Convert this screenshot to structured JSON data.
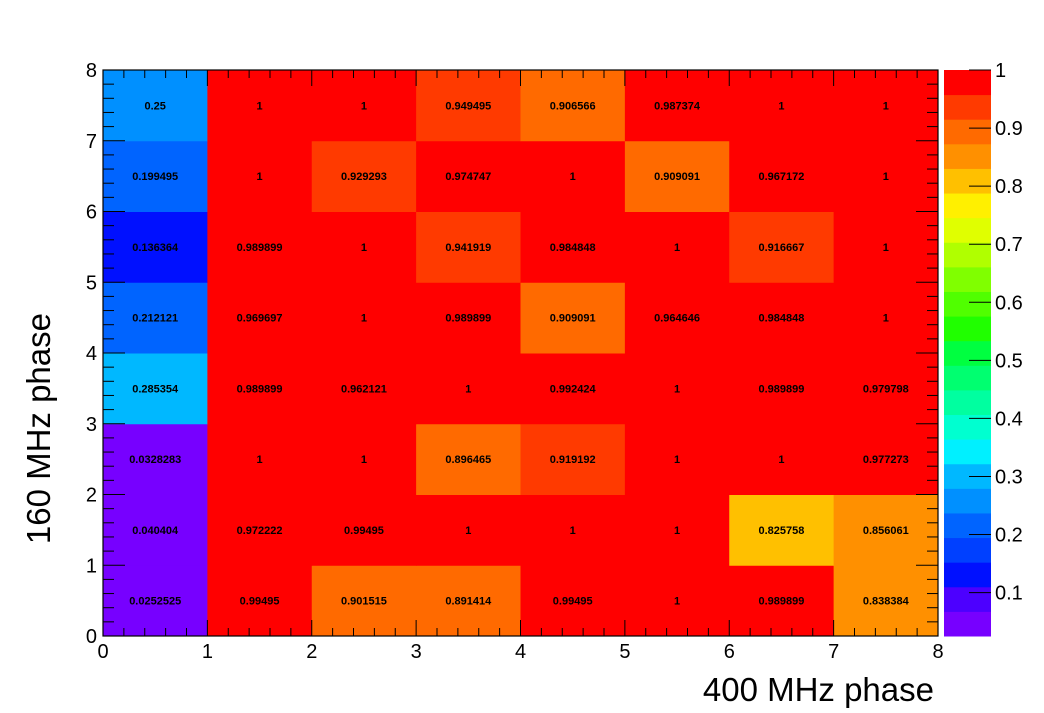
{
  "chart_data": {
    "type": "heatmap",
    "title": "",
    "xlabel": "400 MHz phase",
    "ylabel": "160 MHz phase",
    "xlim": [
      0,
      8
    ],
    "ylim": [
      0,
      8
    ],
    "x_ticks": [
      "0",
      "1",
      "2",
      "3",
      "4",
      "5",
      "6",
      "7",
      "8"
    ],
    "y_ticks": [
      "0",
      "1",
      "2",
      "3",
      "4",
      "5",
      "6",
      "7",
      "8"
    ],
    "color_scale": {
      "min": 0.0252525,
      "max": 1,
      "ticks": [
        "0.1",
        "0.2",
        "0.3",
        "0.4",
        "0.5",
        "0.6",
        "0.7",
        "0.8",
        "0.9",
        "1"
      ],
      "palette": [
        "#7700ff",
        "#4c00ff",
        "#0010ff",
        "#0040ff",
        "#0064ff",
        "#0090ff",
        "#00b8ff",
        "#00f0ff",
        "#00ffd0",
        "#00ffa0",
        "#00ff70",
        "#00ff40",
        "#20ff00",
        "#50ff00",
        "#80ff00",
        "#b0ff00",
        "#e0ff00",
        "#fff000",
        "#ffc000",
        "#ff9000",
        "#ff6a00",
        "#ff3a00",
        "#ff0000"
      ]
    },
    "rows": [
      {
        "y": "0.5",
        "labels": [
          "0.0252525",
          "0.99495",
          "0.901515",
          "0.891414",
          "0.99495",
          "1",
          "0.989899",
          "0.838384"
        ],
        "values": [
          0.0252525,
          0.99495,
          0.901515,
          0.891414,
          0.99495,
          1,
          0.989899,
          0.838384
        ]
      },
      {
        "y": "1.5",
        "labels": [
          "0.040404",
          "0.972222",
          "0.99495",
          "1",
          "1",
          "1",
          "0.825758",
          "0.856061"
        ],
        "values": [
          0.040404,
          0.972222,
          0.99495,
          1,
          1,
          1,
          0.825758,
          0.856061
        ]
      },
      {
        "y": "2.5",
        "labels": [
          "0.0328283",
          "1",
          "1",
          "0.896465",
          "0.919192",
          "1",
          "1",
          "0.977273"
        ],
        "values": [
          0.0328283,
          1,
          1,
          0.896465,
          0.919192,
          1,
          1,
          0.977273
        ]
      },
      {
        "y": "3.5",
        "labels": [
          "0.285354",
          "0.989899",
          "0.962121",
          "1",
          "0.992424",
          "1",
          "0.989899",
          "0.979798"
        ],
        "values": [
          0.285354,
          0.989899,
          0.962121,
          1,
          0.992424,
          1,
          0.989899,
          0.979798
        ]
      },
      {
        "y": "4.5",
        "labels": [
          "0.212121",
          "0.969697",
          "1",
          "0.989899",
          "0.909091",
          "0.964646",
          "0.984848",
          "1"
        ],
        "values": [
          0.212121,
          0.969697,
          1,
          0.989899,
          0.909091,
          0.964646,
          0.984848,
          1
        ]
      },
      {
        "y": "5.5",
        "labels": [
          "0.136364",
          "0.989899",
          "1",
          "0.941919",
          "0.984848",
          "1",
          "0.916667",
          "1"
        ],
        "values": [
          0.136364,
          0.989899,
          1,
          0.941919,
          0.984848,
          1,
          0.916667,
          1
        ]
      },
      {
        "y": "6.5",
        "labels": [
          "0.199495",
          "1",
          "0.929293",
          "0.974747",
          "1",
          "0.909091",
          "0.967172",
          "1"
        ],
        "values": [
          0.199495,
          1,
          0.929293,
          0.974747,
          1,
          0.909091,
          0.967172,
          1
        ]
      },
      {
        "y": "7.5",
        "labels": [
          "0.25",
          "1",
          "1",
          "0.949495",
          "0.906566",
          "0.987374",
          "1",
          "1"
        ],
        "values": [
          0.25,
          1,
          1,
          0.949495,
          0.906566,
          0.987374,
          1,
          1
        ]
      }
    ]
  }
}
